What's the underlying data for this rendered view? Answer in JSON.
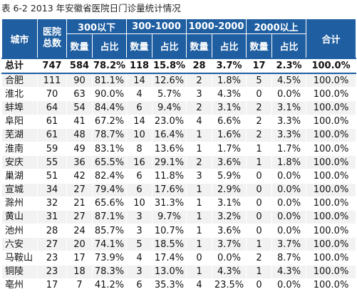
{
  "caption": "表 6-2   2013 年安徽省医院日门诊量统计情况",
  "header": {
    "city": "城市",
    "hospital_total": "医院\n总数",
    "group_labels": [
      "300以下",
      "300-1000",
      "1000-2000",
      "2000以上"
    ],
    "count_label": "数量",
    "ratio_label": "占比",
    "sum_label": "合计"
  },
  "total": {
    "label": "总计",
    "hospitals": "747",
    "g1_count": "584",
    "g1_ratio": "78.2%",
    "g2_count": "118",
    "g2_ratio": "15.8%",
    "g3_count": "28",
    "g3_ratio": "3.7%",
    "g4_count": "17",
    "g4_ratio": "2.3%",
    "sum": "100.0%"
  },
  "rows": [
    [
      "合肥",
      "111",
      "90",
      "81.1%",
      "14",
      "12.6%",
      "2",
      "1.8%",
      "5",
      "4.5%",
      "100.0%"
    ],
    [
      "淮北",
      "70",
      "63",
      "90.0%",
      "4",
      "5.7%",
      "3",
      "4.3%",
      "0",
      "0.0%",
      "100.0%"
    ],
    [
      "蚌埠",
      "64",
      "54",
      "84.4%",
      "6",
      "9.4%",
      "2",
      "3.1%",
      "2",
      "3.1%",
      "100.0%"
    ],
    [
      "阜阳",
      "61",
      "41",
      "67.2%",
      "14",
      "23.0%",
      "4",
      "6.6%",
      "2",
      "3.3%",
      "100.0%"
    ],
    [
      "芜湖",
      "61",
      "48",
      "78.7%",
      "10",
      "16.4%",
      "1",
      "1.6%",
      "2",
      "3.3%",
      "100.0%"
    ],
    [
      "淮南",
      "59",
      "49",
      "83.1%",
      "8",
      "13.6%",
      "1",
      "1.7%",
      "1",
      "1.7%",
      "100.0%"
    ],
    [
      "安庆",
      "55",
      "36",
      "65.5%",
      "16",
      "29.1%",
      "2",
      "3.6%",
      "1",
      "1.8%",
      "100.0%"
    ],
    [
      "巢湖",
      "51",
      "42",
      "82.4%",
      "6",
      "11.8%",
      "3",
      "5.9%",
      "0",
      "0.0%",
      "100.0%"
    ],
    [
      "宣城",
      "34",
      "27",
      "79.4%",
      "6",
      "17.6%",
      "1",
      "2.9%",
      "0",
      "0.0%",
      "100.0%"
    ],
    [
      "滁州",
      "32",
      "21",
      "65.6%",
      "10",
      "31.3%",
      "1",
      "3.1%",
      "0",
      "0.0%",
      "100.0%"
    ],
    [
      "黄山",
      "31",
      "27",
      "87.1%",
      "3",
      "9.7%",
      "1",
      "3.2%",
      "0",
      "0.0%",
      "100.0%"
    ],
    [
      "池州",
      "28",
      "24",
      "85.7%",
      "3",
      "10.7%",
      "1",
      "3.6%",
      "0",
      "0.0%",
      "100.0%"
    ],
    [
      "六安",
      "27",
      "20",
      "74.1%",
      "5",
      "18.5%",
      "1",
      "3.7%",
      "1",
      "3.7%",
      "100.0%"
    ],
    [
      "马鞍山",
      "23",
      "17",
      "73.9%",
      "4",
      "17.4%",
      "0",
      "0.0%",
      "2",
      "8.7%",
      "100.0%"
    ],
    [
      "铜陵",
      "23",
      "18",
      "78.3%",
      "3",
      "13.0%",
      "1",
      "4.3%",
      "1",
      "4.3%",
      "100.0%"
    ],
    [
      "亳州",
      "17",
      "7",
      "41.2%",
      "6",
      "35.3%",
      "4",
      "23.5%",
      "0",
      "0.0%",
      "100.0%"
    ]
  ]
}
